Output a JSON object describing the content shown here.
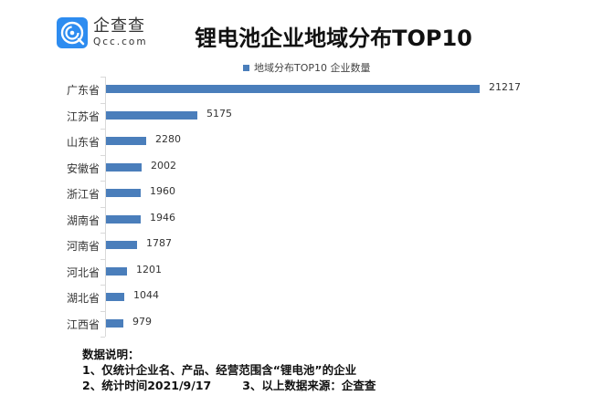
{
  "brand": {
    "name_cn": "企查查",
    "name_en": "Qcc.com",
    "icon": "qcc-logo-icon",
    "color": "#2d8cf0"
  },
  "chart_data": {
    "type": "bar",
    "orientation": "horizontal",
    "title": "锂电池企业地域分布TOP10",
    "legend": [
      "地域分布TOP10 企业数量"
    ],
    "legend_position": "top",
    "categories": [
      "广东省",
      "江苏省",
      "山东省",
      "安徽省",
      "浙江省",
      "湖南省",
      "河南省",
      "河北省",
      "湖北省",
      "江西省"
    ],
    "series": [
      {
        "name": "地域分布TOP10 企业数量",
        "color": "#4a7ebb",
        "values": [
          21217,
          5175,
          2280,
          2002,
          1960,
          1946,
          1787,
          1201,
          1044,
          979
        ]
      }
    ],
    "data_labels": true,
    "grid": false,
    "xlabel": "",
    "ylabel": "",
    "xlim": [
      0,
      21217
    ]
  },
  "notes": {
    "heading": "数据说明：",
    "line1": "1、仅统计企业名、产品、经营范围含“锂电池”的企业",
    "line2a": "2、统计时间2021/9/17",
    "line2b": "3、以上数据来源：企查查"
  }
}
